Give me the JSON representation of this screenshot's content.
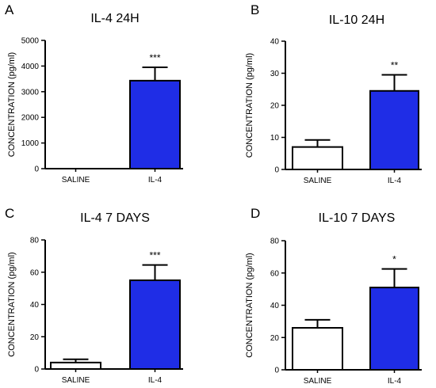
{
  "figure": {
    "bar_colors": {
      "saline": "#ffffff",
      "il4": "#1f2de6"
    },
    "axis_color": "#000000"
  },
  "chart_data": [
    {
      "panel": "A",
      "type": "bar",
      "title": "IL-4 24H",
      "ylabel": "CONCENTRATION (pg/ml)",
      "xlabel": "",
      "categories": [
        "SALINE",
        "IL-4"
      ],
      "values": [
        0,
        3430
      ],
      "errors": [
        0,
        520
      ],
      "significance": [
        "",
        "***"
      ],
      "ylim": [
        0,
        5000
      ],
      "yticks": [
        0,
        1000,
        2000,
        3000,
        4000,
        5000
      ],
      "grid": false
    },
    {
      "panel": "B",
      "type": "bar",
      "title": "IL-10 24H",
      "ylabel": "CONCENTRATION (pg/ml)",
      "xlabel": "",
      "categories": [
        "SALINE",
        "IL-4"
      ],
      "values": [
        7,
        24.5
      ],
      "errors": [
        2.2,
        5
      ],
      "significance": [
        "",
        "**"
      ],
      "ylim": [
        0,
        40
      ],
      "yticks": [
        0,
        10,
        20,
        30,
        40
      ],
      "grid": false
    },
    {
      "panel": "C",
      "type": "bar",
      "title": "IL-4 7 DAYS",
      "ylabel": "CONCENTRATION (pg/ml)",
      "xlabel": "",
      "categories": [
        "SALINE",
        "IL-4"
      ],
      "values": [
        4,
        55
      ],
      "errors": [
        2,
        9.5
      ],
      "significance": [
        "",
        "***"
      ],
      "ylim": [
        0,
        80
      ],
      "yticks": [
        0,
        20,
        40,
        60,
        80
      ],
      "grid": false
    },
    {
      "panel": "D",
      "type": "bar",
      "title": "IL-10 7 DAYS",
      "ylabel": "CONCENTRATION (pg/ml)",
      "xlabel": "",
      "categories": [
        "SALINE",
        "IL-4"
      ],
      "values": [
        26,
        51
      ],
      "errors": [
        5,
        11.5
      ],
      "significance": [
        "",
        "*"
      ],
      "ylim": [
        0,
        80
      ],
      "yticks": [
        0,
        20,
        40,
        60,
        80
      ],
      "grid": false
    }
  ]
}
